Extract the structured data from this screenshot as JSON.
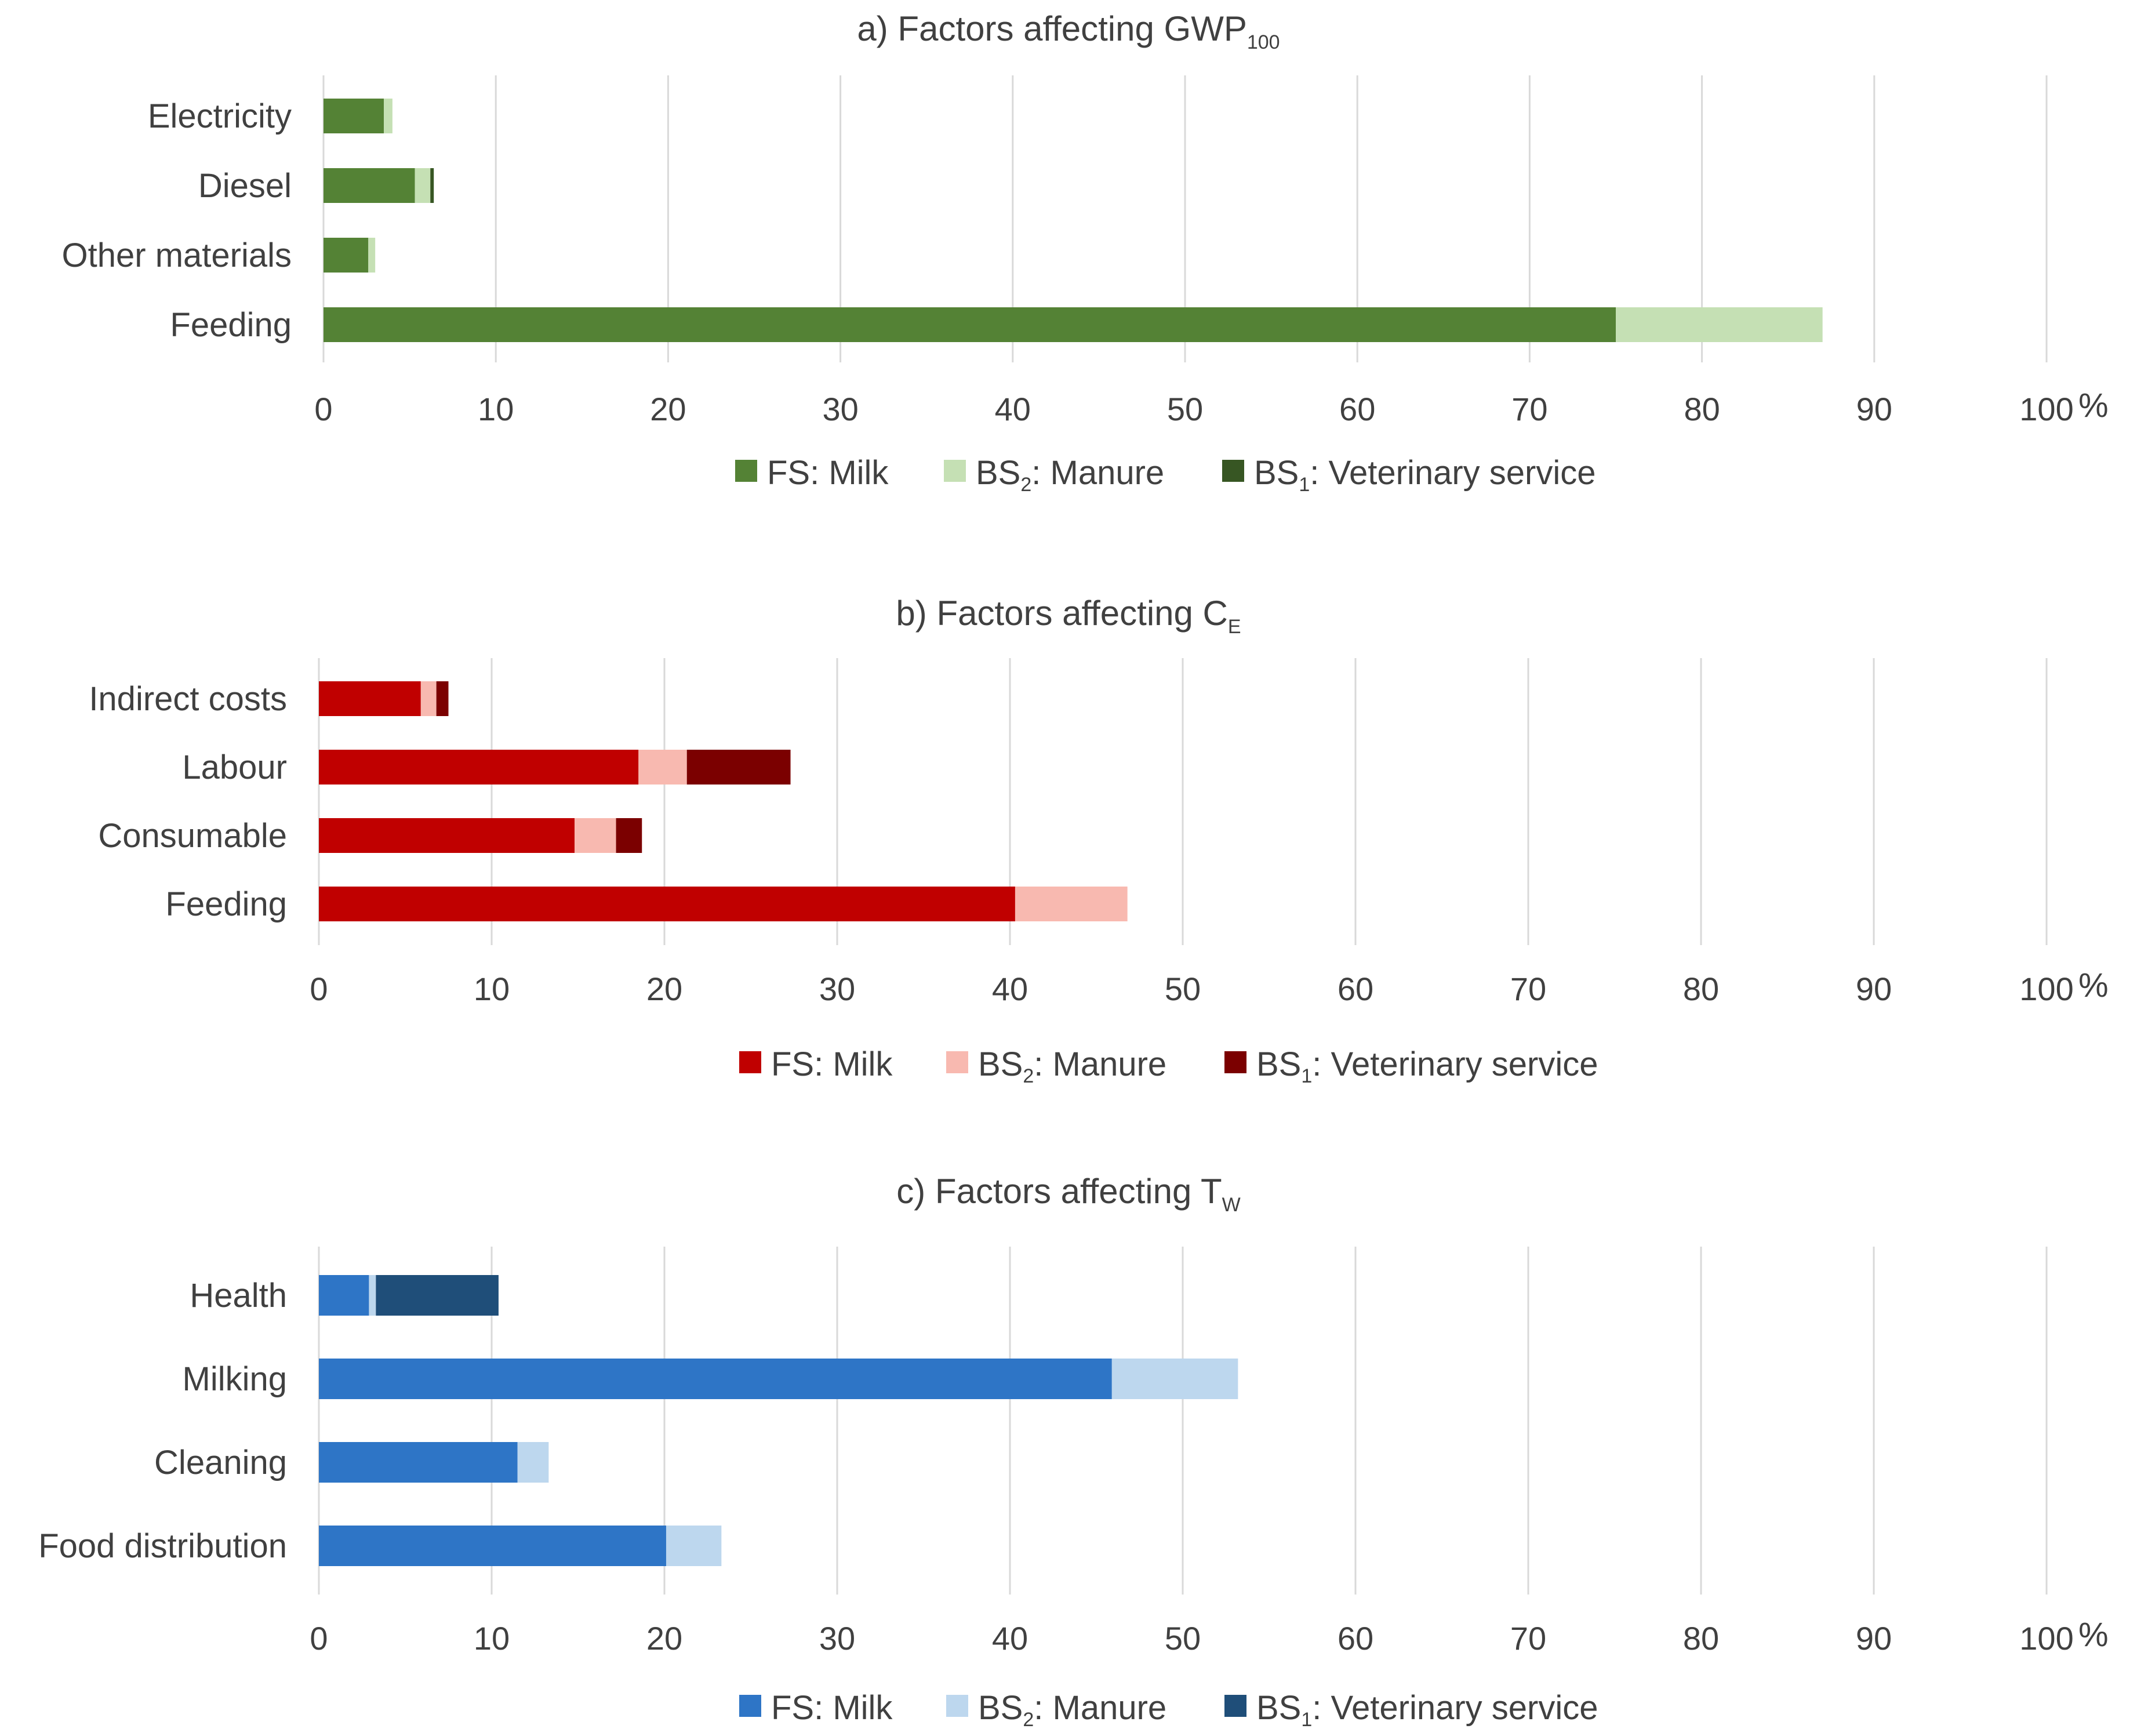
{
  "chart_data": [
    {
      "type": "bar",
      "orientation": "horizontal",
      "stacked": true,
      "panel": "a",
      "title": "a) Factors affecting GWP",
      "title_subscript": "100",
      "categories": [
        "Electricity",
        "Diesel",
        "Other materials",
        "Feeding"
      ],
      "series": [
        {
          "name": "FS: Milk",
          "legend_main": "FS: Milk",
          "legend_sub": "",
          "legend_rest": "",
          "color": "#548235",
          "values": [
            3.5,
            5.3,
            2.6,
            75.0
          ]
        },
        {
          "name": "BS2: Manure",
          "legend_main": "BS",
          "legend_sub": "2",
          "legend_rest": ": Manure",
          "color": "#c5e0b4",
          "values": [
            0.5,
            0.9,
            0.4,
            12.0
          ]
        },
        {
          "name": "BS1: Veterinary service",
          "legend_main": "BS",
          "legend_sub": "1",
          "legend_rest": ": Veterinary service",
          "color": "#375623",
          "values": [
            0,
            0.2,
            0,
            0
          ]
        }
      ],
      "xlim": [
        0,
        100
      ],
      "xticks": [
        "0",
        "10",
        "20",
        "30",
        "40",
        "50",
        "60",
        "70",
        "80",
        "90",
        "100"
      ],
      "unit": "%",
      "legend": "bottom",
      "grid": true
    },
    {
      "type": "bar",
      "orientation": "horizontal",
      "stacked": true,
      "panel": "b",
      "title": "b) Factors affecting C",
      "title_subscript": "E",
      "categories": [
        "Indirect costs",
        "Labour",
        "Consumable",
        "Feeding"
      ],
      "series": [
        {
          "name": "FS: Milk",
          "legend_main": "FS: Milk",
          "legend_sub": "",
          "legend_rest": "",
          "color": "#c00000",
          "values": [
            5.9,
            18.5,
            14.8,
            40.3
          ]
        },
        {
          "name": "BS2: Manure",
          "legend_main": "BS",
          "legend_sub": "2",
          "legend_rest": ": Manure",
          "color": "#f8b9b0",
          "values": [
            0.9,
            2.8,
            2.4,
            6.5
          ]
        },
        {
          "name": "BS1: Veterinary service",
          "legend_main": "BS",
          "legend_sub": "1",
          "legend_rest": ": Veterinary service",
          "color": "#7b0000",
          "values": [
            0.7,
            6.0,
            1.5,
            0
          ]
        }
      ],
      "xlim": [
        0,
        100
      ],
      "xticks": [
        "0",
        "10",
        "20",
        "30",
        "40",
        "50",
        "60",
        "70",
        "80",
        "90",
        "100"
      ],
      "unit": "%",
      "legend": "bottom",
      "grid": true
    },
    {
      "type": "bar",
      "orientation": "horizontal",
      "stacked": true,
      "panel": "c",
      "title": "c) Factors affecting T",
      "title_subscript": "W",
      "categories": [
        "Health",
        "Milking",
        "Cleaning",
        "Food distribution"
      ],
      "series": [
        {
          "name": "FS: Milk",
          "legend_main": "FS: Milk",
          "legend_sub": "",
          "legend_rest": "",
          "color": "#2e75c6",
          "values": [
            2.9,
            45.9,
            11.5,
            20.1
          ]
        },
        {
          "name": "BS2: Manure",
          "legend_main": "BS",
          "legend_sub": "2",
          "legend_rest": ": Manure",
          "color": "#bdd7ee",
          "values": [
            0.4,
            7.3,
            1.8,
            3.2
          ]
        },
        {
          "name": "BS1: Veterinary service",
          "legend_main": "BS",
          "legend_sub": "1",
          "legend_rest": ": Veterinary service",
          "color": "#1f4e79",
          "values": [
            7.1,
            0,
            0,
            0
          ]
        }
      ],
      "xlim": [
        0,
        100
      ],
      "xticks": [
        "0",
        "10",
        "20",
        "30",
        "40",
        "50",
        "60",
        "70",
        "80",
        "90",
        "100"
      ],
      "unit": "%",
      "legend": "bottom",
      "grid": true
    }
  ]
}
